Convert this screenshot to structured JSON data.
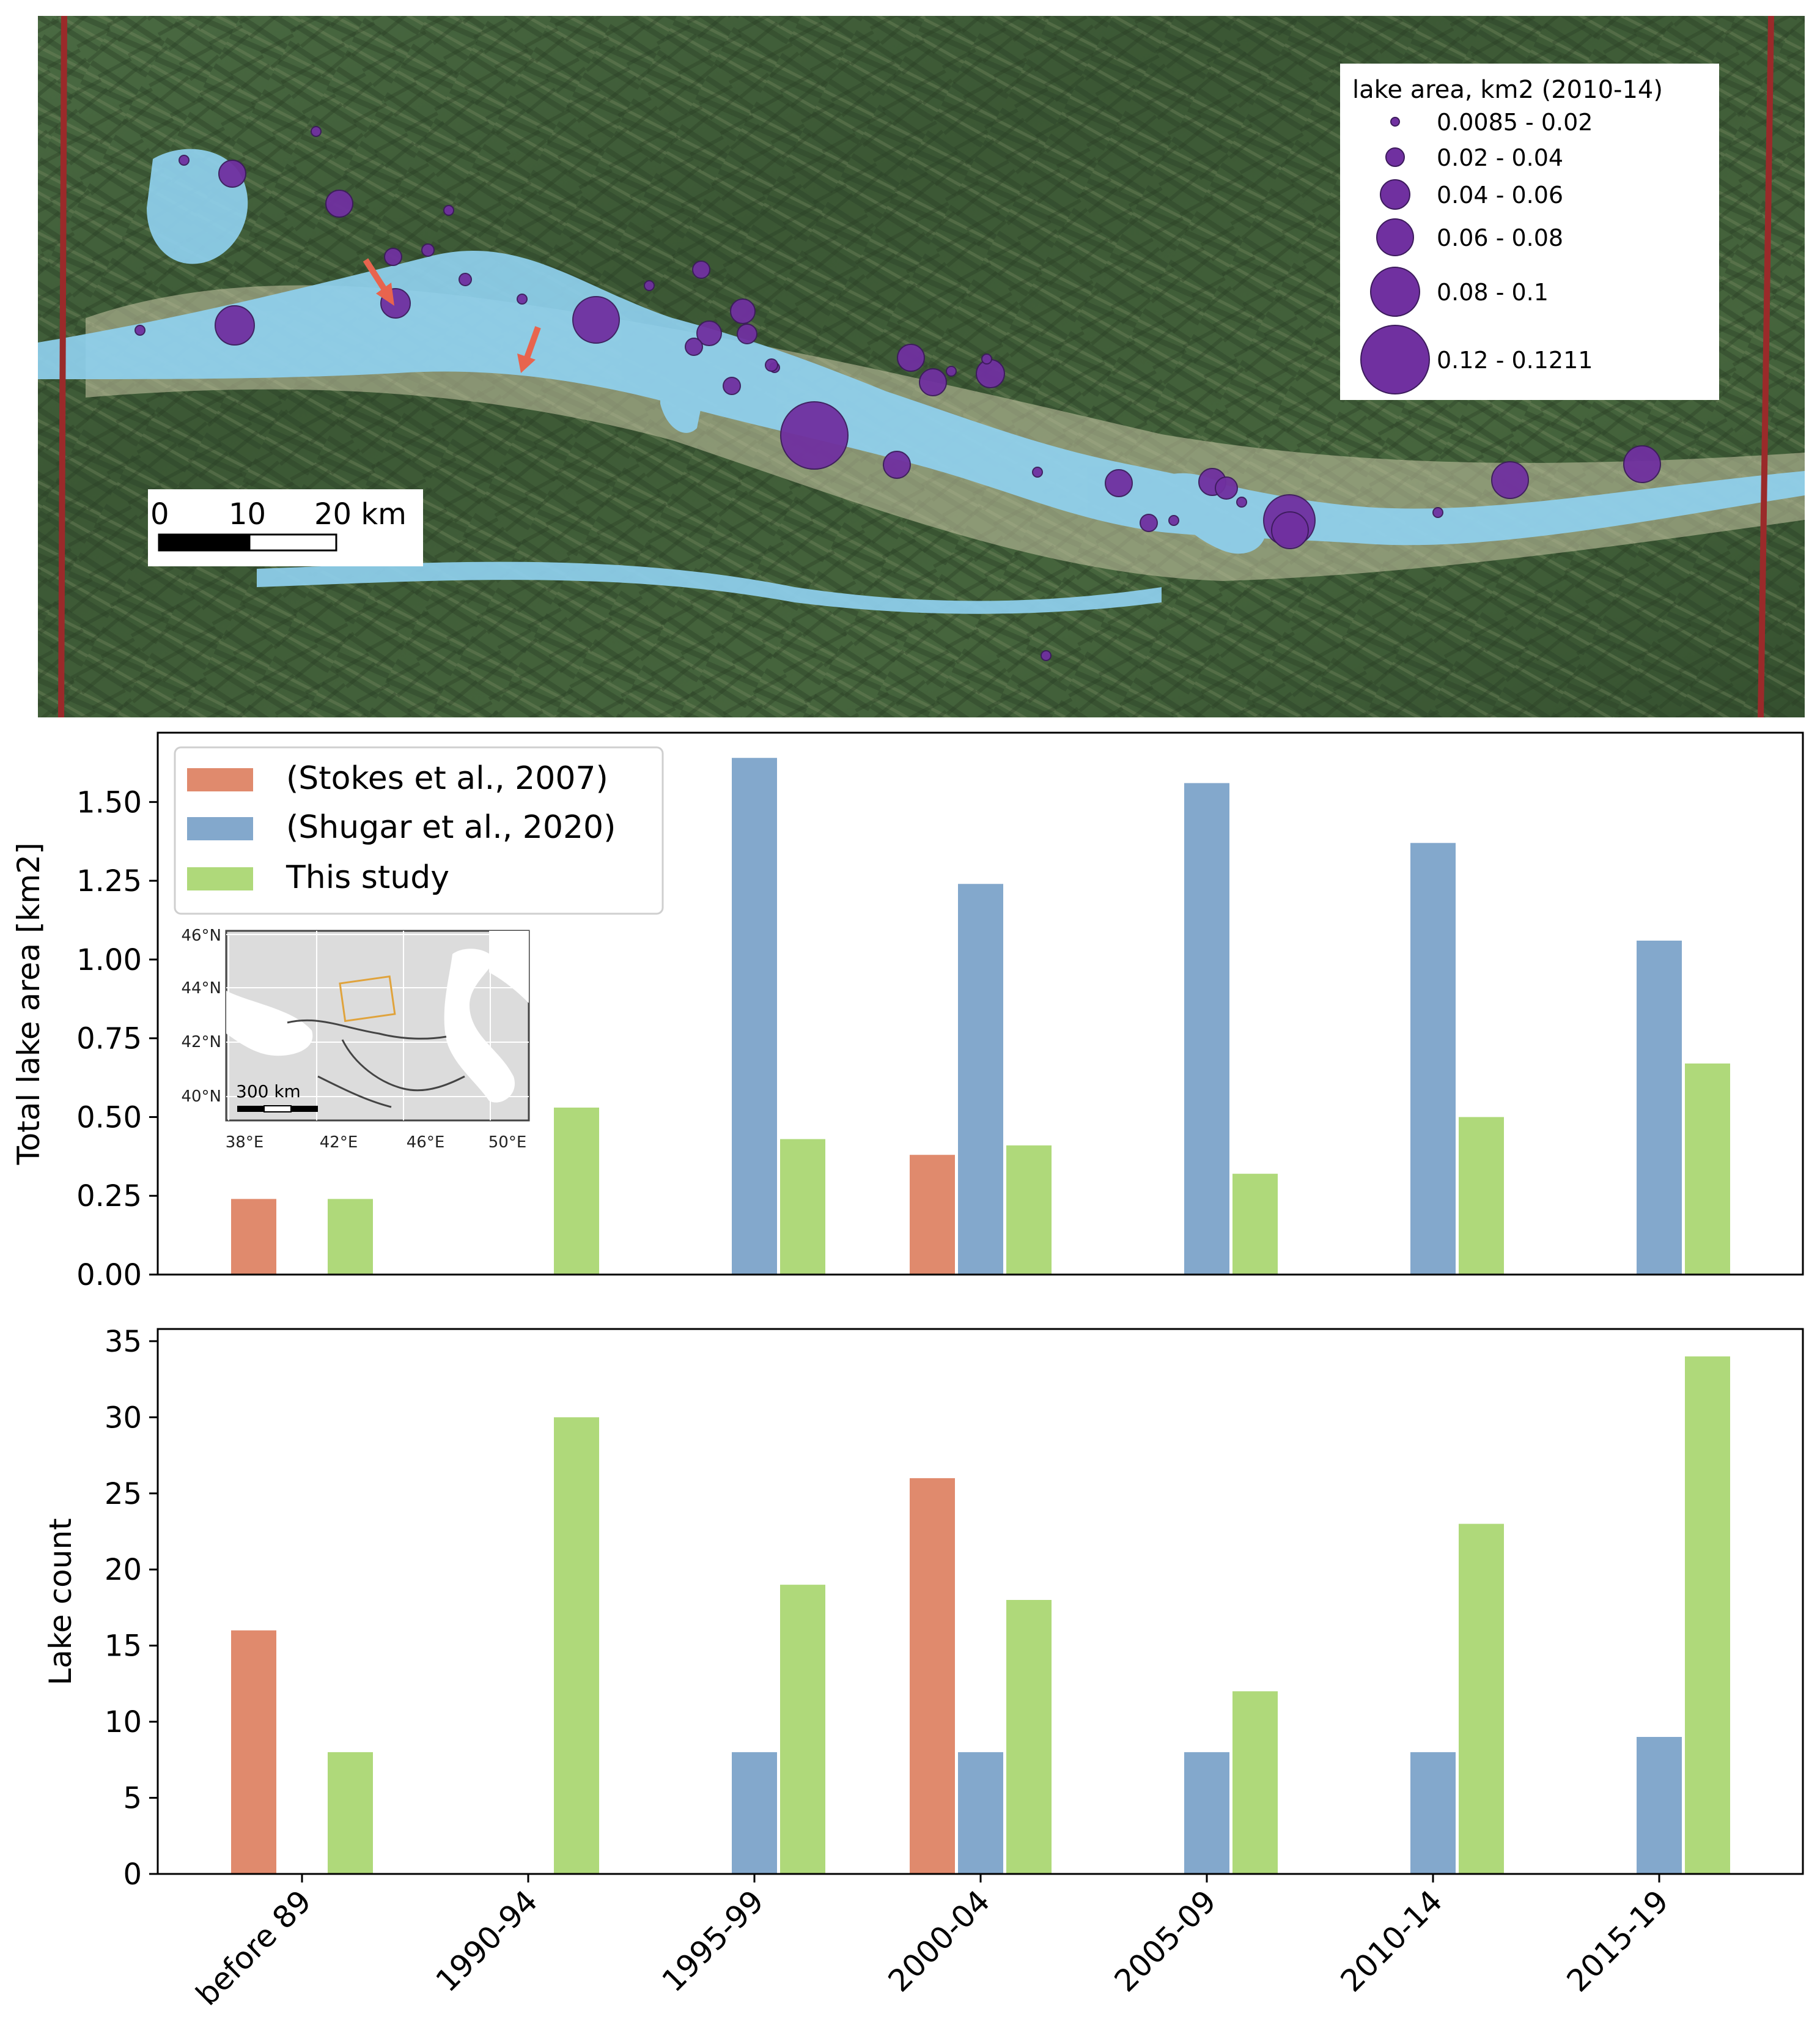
{
  "map": {
    "legend_title": "lake area, km2 (2010-14)",
    "legend_items": [
      "0.0085 - 0.02",
      "0.02 - 0.04",
      "0.04 - 0.06",
      "0.06 - 0.08",
      "0.08 - 0.1",
      "0.12 - 0.1211"
    ],
    "scale_labels": [
      "0",
      "10",
      "20 km"
    ],
    "colors": {
      "lake": "#7030a0",
      "glacier": "#8fd0ee",
      "arrow": "#e8644e",
      "border": "#9a2a2a",
      "terrain": "#3d5a35"
    }
  },
  "inset": {
    "lat_labels": [
      "46°N",
      "44°N",
      "42°N",
      "40°N"
    ],
    "lon_labels": [
      "38°E",
      "42°E",
      "46°E",
      "50°E"
    ],
    "scale_label": "300 km"
  },
  "chart_data": [
    {
      "type": "bar",
      "title": "",
      "xlabel": "",
      "ylabel": "Total lake area [km2]",
      "categories": [
        "before 89",
        "1990-94",
        "1995-99",
        "2000-04",
        "2005-09",
        "2010-14",
        "2015-19"
      ],
      "ylim": [
        0,
        1.72
      ],
      "yticks": [
        "0.00",
        "0.25",
        "0.50",
        "0.75",
        "1.00",
        "1.25",
        "1.50"
      ],
      "legend_placement": "top-left",
      "series": [
        {
          "name": "(Stokes et al., 2007)",
          "color": "#e08a6d",
          "values": [
            0.24,
            null,
            null,
            0.38,
            null,
            null,
            null
          ]
        },
        {
          "name": "(Shugar et al., 2020)",
          "color": "#83a8cc",
          "values": [
            null,
            null,
            1.64,
            1.24,
            1.56,
            1.37,
            1.06
          ]
        },
        {
          "name": "This study",
          "color": "#afd97a",
          "values": [
            0.24,
            0.53,
            0.43,
            0.41,
            0.32,
            0.5,
            0.67
          ]
        }
      ]
    },
    {
      "type": "bar",
      "title": "",
      "xlabel": "",
      "ylabel": "Lake count",
      "categories": [
        "before 89",
        "1990-94",
        "1995-99",
        "2000-04",
        "2005-09",
        "2010-14",
        "2015-19"
      ],
      "ylim": [
        0,
        35.8
      ],
      "yticks": [
        "0",
        "5",
        "10",
        "15",
        "20",
        "25",
        "30",
        "35"
      ],
      "series": [
        {
          "color": "#e08a6d",
          "values": [
            16,
            null,
            null,
            26,
            null,
            null,
            null
          ]
        },
        {
          "color": "#83a8cc",
          "values": [
            null,
            null,
            8,
            8,
            8,
            8,
            9
          ]
        },
        {
          "color": "#afd97a",
          "values": [
            8,
            30,
            19,
            18,
            12,
            23,
            34
          ]
        }
      ]
    }
  ]
}
